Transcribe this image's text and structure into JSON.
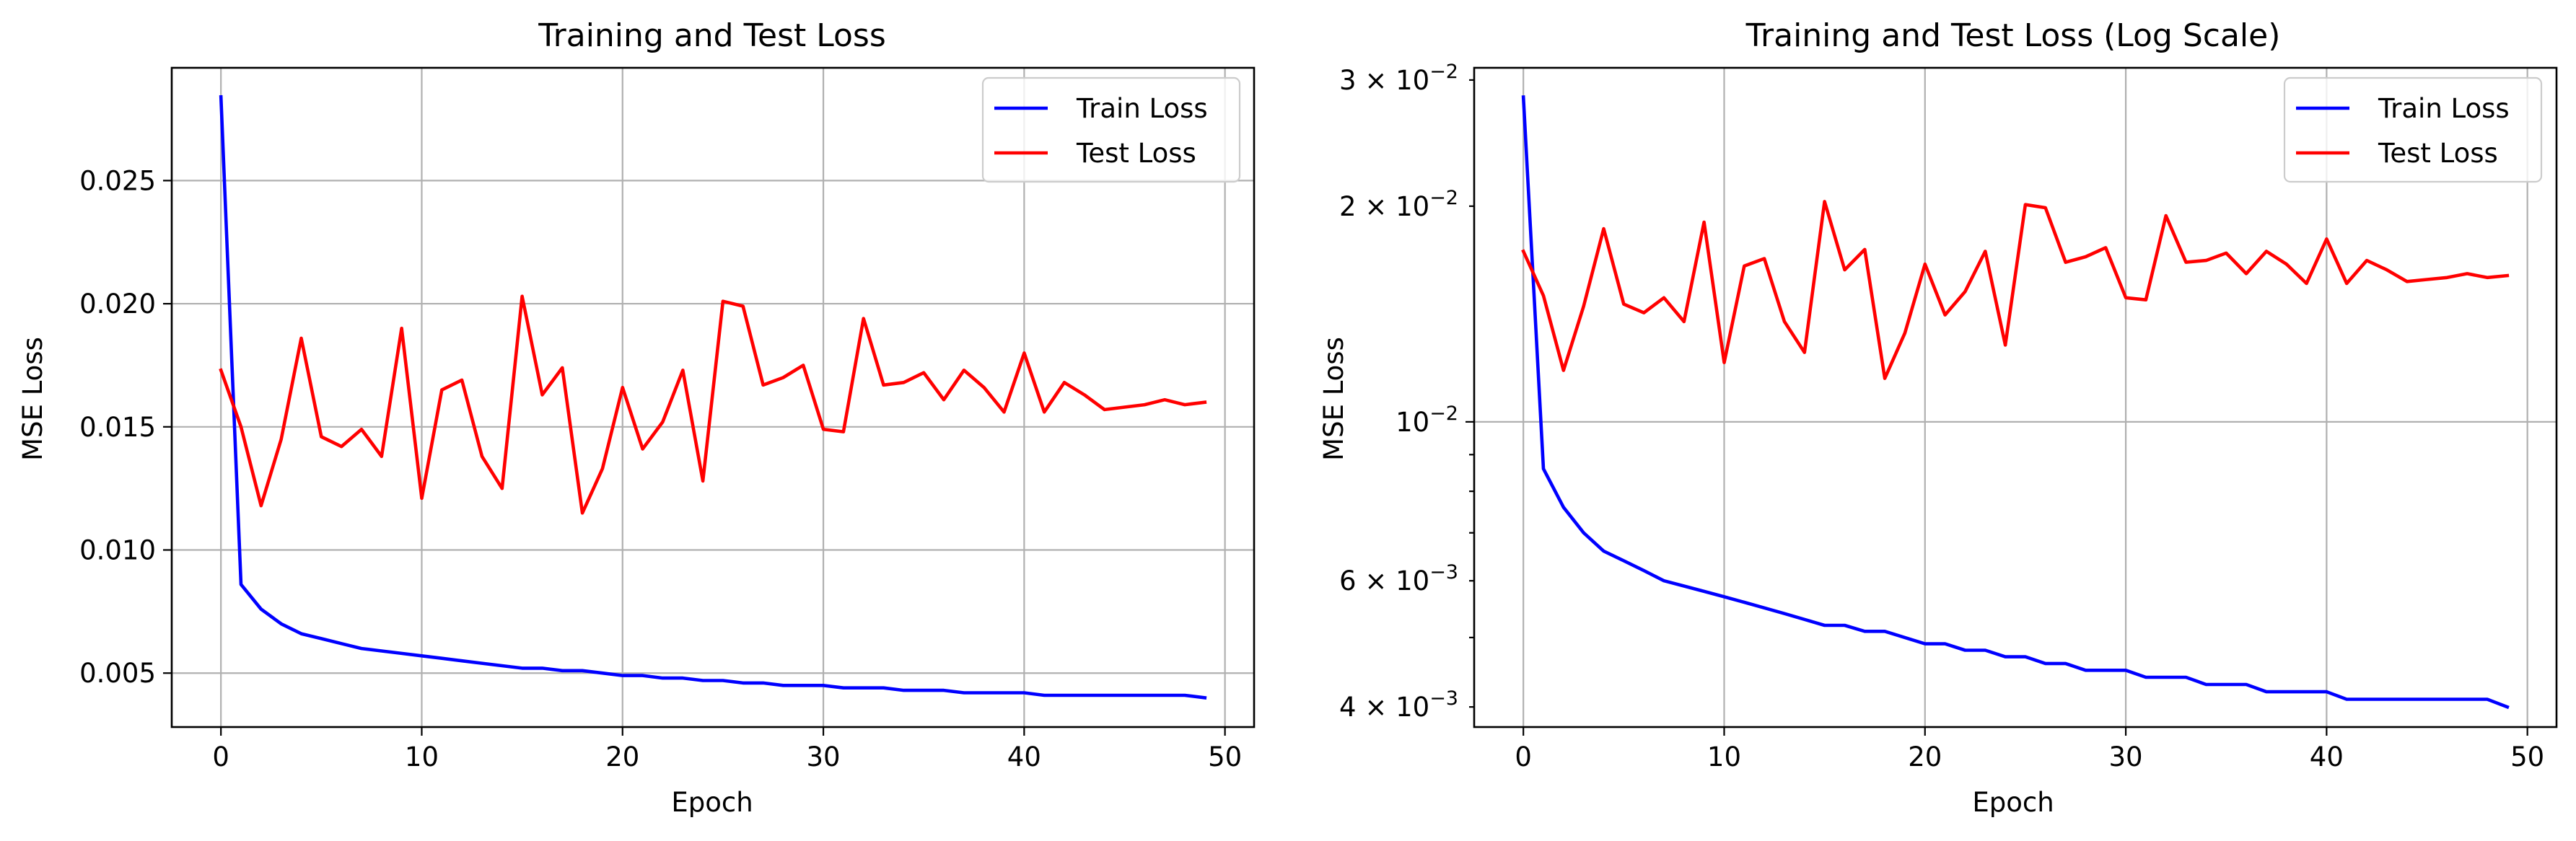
{
  "chart_data": [
    {
      "type": "line",
      "title": "Training and Test Loss",
      "xlabel": "Epoch",
      "ylabel": "MSE Loss",
      "yscale": "linear",
      "xlim": [
        -2.45,
        51.45
      ],
      "ylim": [
        0.00281,
        0.02958
      ],
      "xticks": [
        0,
        10,
        20,
        30,
        40,
        50
      ],
      "xtick_labels": [
        "0",
        "10",
        "20",
        "30",
        "40",
        "50"
      ],
      "yticks": [
        0.005,
        0.01,
        0.015,
        0.02,
        0.025
      ],
      "ytick_labels": [
        "0.005",
        "0.010",
        "0.015",
        "0.020",
        "0.025"
      ],
      "grid": true,
      "legend_position": "upper right",
      "x": [
        0,
        1,
        2,
        3,
        4,
        5,
        6,
        7,
        8,
        9,
        10,
        11,
        12,
        13,
        14,
        15,
        16,
        17,
        18,
        19,
        20,
        21,
        22,
        23,
        24,
        25,
        26,
        27,
        28,
        29,
        30,
        31,
        32,
        33,
        34,
        35,
        36,
        37,
        38,
        39,
        40,
        41,
        42,
        43,
        44,
        45,
        46,
        47,
        48,
        49
      ],
      "series": [
        {
          "name": "Train Loss",
          "color": "#0000ff",
          "values": [
            0.0284,
            0.0086,
            0.0076,
            0.007,
            0.0066,
            0.0064,
            0.0062,
            0.006,
            0.0059,
            0.0058,
            0.0057,
            0.0056,
            0.0055,
            0.0054,
            0.0053,
            0.0052,
            0.0052,
            0.0051,
            0.0051,
            0.005,
            0.0049,
            0.0049,
            0.0048,
            0.0048,
            0.0047,
            0.0047,
            0.0046,
            0.0046,
            0.0045,
            0.0045,
            0.0045,
            0.0044,
            0.0044,
            0.0044,
            0.0043,
            0.0043,
            0.0043,
            0.0042,
            0.0042,
            0.0042,
            0.0042,
            0.0041,
            0.0041,
            0.0041,
            0.0041,
            0.0041,
            0.0041,
            0.0041,
            0.0041,
            0.004
          ]
        },
        {
          "name": "Test Loss",
          "color": "#ff0000",
          "values": [
            0.0173,
            0.015,
            0.0118,
            0.0145,
            0.0186,
            0.0146,
            0.0142,
            0.0149,
            0.0138,
            0.019,
            0.0121,
            0.0165,
            0.0169,
            0.0138,
            0.0125,
            0.0203,
            0.0163,
            0.0174,
            0.0115,
            0.0133,
            0.0166,
            0.0141,
            0.0152,
            0.0173,
            0.0128,
            0.0201,
            0.0199,
            0.0167,
            0.017,
            0.0175,
            0.0149,
            0.0148,
            0.0194,
            0.0167,
            0.0168,
            0.0172,
            0.0161,
            0.0173,
            0.0166,
            0.0156,
            0.018,
            0.0156,
            0.0168,
            0.0163,
            0.0157,
            0.0158,
            0.0159,
            0.0161,
            0.0159,
            0.016
          ]
        }
      ]
    },
    {
      "type": "line",
      "title": "Training and Test Loss (Log Scale)",
      "xlabel": "Epoch",
      "ylabel": "MSE Loss",
      "yscale": "log",
      "xlim": [
        -2.45,
        51.45
      ],
      "ylim": [
        0.00375,
        0.0312
      ],
      "xticks": [
        0,
        10,
        20,
        30,
        40,
        50
      ],
      "xtick_labels": [
        "0",
        "10",
        "20",
        "30",
        "40",
        "50"
      ],
      "yticks_major": [
        0.01
      ],
      "yticks_major_labels": [
        {
          "base": "10",
          "exp": "−2"
        }
      ],
      "yticks_minor": [
        0.004,
        0.005,
        0.006,
        0.007,
        0.008,
        0.009,
        0.02,
        0.03
      ],
      "yticks_minor_labels": [
        {
          "value": 0.004,
          "mant": "4",
          "base": "10",
          "exp": "−3"
        },
        {
          "value": 0.006,
          "mant": "6",
          "base": "10",
          "exp": "−3"
        },
        {
          "value": 0.02,
          "mant": "2",
          "base": "10",
          "exp": "−2"
        },
        {
          "value": 0.03,
          "mant": "3",
          "base": "10",
          "exp": "−2"
        }
      ],
      "grid": true,
      "legend_position": "upper right",
      "x": [
        0,
        1,
        2,
        3,
        4,
        5,
        6,
        7,
        8,
        9,
        10,
        11,
        12,
        13,
        14,
        15,
        16,
        17,
        18,
        19,
        20,
        21,
        22,
        23,
        24,
        25,
        26,
        27,
        28,
        29,
        30,
        31,
        32,
        33,
        34,
        35,
        36,
        37,
        38,
        39,
        40,
        41,
        42,
        43,
        44,
        45,
        46,
        47,
        48,
        49
      ],
      "series": [
        {
          "name": "Train Loss",
          "color": "#0000ff",
          "values": [
            0.0284,
            0.0086,
            0.0076,
            0.007,
            0.0066,
            0.0064,
            0.0062,
            0.006,
            0.0059,
            0.0058,
            0.0057,
            0.0056,
            0.0055,
            0.0054,
            0.0053,
            0.0052,
            0.0052,
            0.0051,
            0.0051,
            0.005,
            0.0049,
            0.0049,
            0.0048,
            0.0048,
            0.0047,
            0.0047,
            0.0046,
            0.0046,
            0.0045,
            0.0045,
            0.0045,
            0.0044,
            0.0044,
            0.0044,
            0.0043,
            0.0043,
            0.0043,
            0.0042,
            0.0042,
            0.0042,
            0.0042,
            0.0041,
            0.0041,
            0.0041,
            0.0041,
            0.0041,
            0.0041,
            0.0041,
            0.0041,
            0.004
          ]
        },
        {
          "name": "Test Loss",
          "color": "#ff0000",
          "values": [
            0.0173,
            0.015,
            0.0118,
            0.0145,
            0.0186,
            0.0146,
            0.0142,
            0.0149,
            0.0138,
            0.019,
            0.0121,
            0.0165,
            0.0169,
            0.0138,
            0.0125,
            0.0203,
            0.0163,
            0.0174,
            0.0115,
            0.0133,
            0.0166,
            0.0141,
            0.0152,
            0.0173,
            0.0128,
            0.0201,
            0.0199,
            0.0167,
            0.017,
            0.0175,
            0.0149,
            0.0148,
            0.0194,
            0.0167,
            0.0168,
            0.0172,
            0.0161,
            0.0173,
            0.0166,
            0.0156,
            0.018,
            0.0156,
            0.0168,
            0.0163,
            0.0157,
            0.0158,
            0.0159,
            0.0161,
            0.0159,
            0.016
          ]
        }
      ]
    }
  ]
}
